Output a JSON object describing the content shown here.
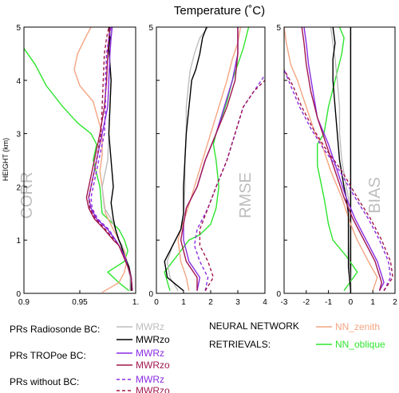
{
  "title": "Temperature (˚C)",
  "ylabel": "HEIGHT (km)",
  "colors": {
    "MWRz_rad": "#bdbdbd",
    "MWRzo_rad": "#000000",
    "MWRz": "#8a2be2",
    "MWRzo": "#a0174f",
    "NN_zenith": "#f4a582",
    "NN_oblique": "#2ee52e"
  },
  "legend": {
    "groups": [
      {
        "label": "PRs Radiosonde BC:",
        "entries": [
          {
            "key": "MWRz_rad",
            "name": "MWRz",
            "dash": false,
            "color": "#bdbdbd"
          },
          {
            "key": "MWRzo_rad",
            "name": "MWRzo",
            "dash": false,
            "color": "#000000"
          }
        ]
      },
      {
        "label": "PRs TROPoe BC:",
        "entries": [
          {
            "key": "MWRz_tro",
            "name": "MWRz",
            "dash": false,
            "color": "#8a2be2"
          },
          {
            "key": "MWRzo_tro",
            "name": "MWRzo",
            "dash": false,
            "color": "#a0174f"
          }
        ]
      },
      {
        "label": "PRs without BC:",
        "entries": [
          {
            "key": "MWRz_nobc",
            "name": "MWRz",
            "dash": true,
            "color": "#8a2be2"
          },
          {
            "key": "MWRzo_nobc",
            "name": "MWRzo",
            "dash": true,
            "color": "#a0174f"
          }
        ]
      }
    ],
    "nn_label1": "NEURAL NETWORK",
    "nn_label2": "RETRIEVALS:",
    "nn_entries": [
      {
        "key": "NN_zenith",
        "name": "NN_zenith",
        "color": "#f4a582"
      },
      {
        "key": "NN_oblique",
        "name": "NN_oblique",
        "color": "#2ee52e"
      }
    ]
  },
  "chart_data": [
    {
      "type": "line",
      "label": "CORR",
      "ylim": [
        0,
        5
      ],
      "xlim": [
        0.9,
        1.0
      ],
      "xticks": [
        "0.9",
        "0.95",
        "1."
      ],
      "yticks": [
        "0",
        "1",
        "2",
        "3",
        "4",
        "5"
      ],
      "grid": false,
      "series": [
        {
          "name": "NN_oblique",
          "color": "#2ee52e",
          "dash": false,
          "x": [
            0.994,
            0.985,
            0.975,
            0.99,
            0.993,
            0.99,
            0.985,
            0.97,
            0.968,
            0.962,
            0.965,
            0.96,
            0.948,
            0.935,
            0.92,
            0.91,
            0.9
          ],
          "y": [
            0.05,
            0.2,
            0.4,
            0.6,
            0.8,
            1.0,
            1.2,
            1.5,
            2.0,
            2.5,
            2.8,
            3.0,
            3.2,
            3.5,
            3.9,
            4.3,
            4.6
          ]
        },
        {
          "name": "NN_zenith",
          "color": "#f4a582",
          "dash": false,
          "x": [
            0.97,
            0.985,
            0.99,
            0.992,
            0.99,
            0.985,
            0.98,
            0.973,
            0.97,
            0.968,
            0.97,
            0.97,
            0.966,
            0.962,
            0.95,
            0.945,
            0.948,
            0.955,
            0.96
          ],
          "y": [
            0.02,
            0.2,
            0.4,
            0.6,
            0.8,
            1.0,
            1.2,
            1.5,
            2.0,
            2.3,
            2.6,
            3.0,
            3.3,
            3.6,
            3.9,
            4.2,
            4.5,
            4.8,
            5.0
          ]
        },
        {
          "name": "MWRz_rad",
          "color": "#bdbdbd",
          "dash": false,
          "x": [
            0.995,
            0.995,
            0.993,
            0.99,
            0.988,
            0.985,
            0.982,
            0.978,
            0.972,
            0.97,
            0.975,
            0.976,
            0.977,
            0.978,
            0.977,
            0.976,
            0.977,
            0.978
          ],
          "y": [
            0.05,
            0.3,
            0.5,
            0.7,
            0.9,
            1.0,
            1.2,
            1.4,
            1.6,
            2.0,
            2.5,
            3.0,
            3.5,
            4.0,
            4.3,
            4.6,
            4.8,
            5.0
          ]
        },
        {
          "name": "MWRzo_rad",
          "color": "#000000",
          "dash": false,
          "x": [
            0.996,
            0.996,
            0.994,
            0.99,
            0.987,
            0.985,
            0.982,
            0.98,
            0.978,
            0.98,
            0.978,
            0.976,
            0.977,
            0.978,
            0.977,
            0.976,
            0.977,
            0.976
          ],
          "y": [
            0.05,
            0.3,
            0.5,
            0.7,
            0.9,
            1.0,
            1.2,
            1.4,
            1.7,
            2.0,
            2.5,
            3.0,
            3.5,
            4.0,
            4.3,
            4.6,
            4.8,
            5.0
          ]
        },
        {
          "name": "MWRz_tro",
          "color": "#8a2be2",
          "dash": false,
          "x": [
            0.997,
            0.996,
            0.993,
            0.99,
            0.985,
            0.982,
            0.975,
            0.965,
            0.96,
            0.958,
            0.96,
            0.965,
            0.97,
            0.975,
            0.976,
            0.977,
            0.978,
            0.979
          ],
          "y": [
            0.05,
            0.3,
            0.5,
            0.7,
            0.9,
            1.0,
            1.2,
            1.4,
            1.6,
            1.8,
            2.0,
            2.5,
            3.0,
            3.5,
            4.0,
            4.5,
            4.8,
            5.0
          ]
        },
        {
          "name": "MWRzo_tro",
          "color": "#a0174f",
          "dash": false,
          "x": [
            0.997,
            0.996,
            0.993,
            0.989,
            0.985,
            0.98,
            0.972,
            0.963,
            0.958,
            0.956,
            0.958,
            0.963,
            0.968,
            0.972,
            0.974,
            0.975,
            0.976,
            0.977
          ],
          "y": [
            0.05,
            0.3,
            0.5,
            0.7,
            0.9,
            1.0,
            1.2,
            1.4,
            1.6,
            1.8,
            2.0,
            2.5,
            3.0,
            3.5,
            4.0,
            4.5,
            4.8,
            5.0
          ]
        },
        {
          "name": "MWRz_nobc",
          "color": "#8a2be2",
          "dash": true,
          "x": [
            0.997,
            0.996,
            0.993,
            0.99,
            0.985,
            0.982,
            0.976,
            0.966,
            0.961,
            0.96,
            0.962,
            0.967,
            0.972,
            0.973,
            0.973,
            0.974,
            0.976,
            0.978
          ],
          "y": [
            0.05,
            0.3,
            0.5,
            0.7,
            0.9,
            1.0,
            1.2,
            1.4,
            1.6,
            1.8,
            2.0,
            2.5,
            3.0,
            3.5,
            4.0,
            4.5,
            4.8,
            5.0
          ]
        },
        {
          "name": "MWRzo_nobc",
          "color": "#a0174f",
          "dash": true,
          "x": [
            0.997,
            0.996,
            0.993,
            0.989,
            0.985,
            0.981,
            0.973,
            0.964,
            0.959,
            0.958,
            0.96,
            0.965,
            0.969,
            0.97,
            0.971,
            0.972,
            0.974,
            0.976
          ],
          "y": [
            0.05,
            0.3,
            0.5,
            0.7,
            0.9,
            1.0,
            1.2,
            1.4,
            1.6,
            1.8,
            2.0,
            2.5,
            3.0,
            3.5,
            4.0,
            4.5,
            4.8,
            5.0
          ]
        }
      ]
    },
    {
      "type": "line",
      "label": "RMSE",
      "ylim": [
        0,
        5
      ],
      "xlim": [
        0,
        4
      ],
      "xticks": [
        "0",
        "1",
        "2",
        "3",
        "4"
      ],
      "yticks": [],
      "grid": false,
      "series": [
        {
          "name": "NN_oblique",
          "color": "#2ee52e",
          "dash": false,
          "x": [
            0.5,
            0.3,
            0.9,
            1.2,
            1.6,
            2.0,
            2.2,
            2.3,
            2.2,
            2.1,
            2.2,
            2.4,
            2.6,
            2.8,
            3.0,
            3.2,
            3.4
          ],
          "y": [
            0.05,
            0.4,
            0.8,
            1.0,
            1.1,
            1.3,
            1.6,
            2.0,
            2.5,
            2.8,
            3.0,
            3.3,
            3.6,
            4.0,
            4.3,
            4.6,
            5.0
          ]
        },
        {
          "name": "NN_zenith",
          "color": "#f4a582",
          "dash": false,
          "x": [
            1.2,
            1.1,
            0.9,
            0.8,
            0.9,
            1.1,
            1.4,
            1.7,
            2.0,
            2.3,
            2.6,
            2.8,
            3.0,
            3.1
          ],
          "y": [
            0.05,
            0.3,
            0.6,
            1.0,
            1.2,
            1.5,
            2.0,
            2.5,
            3.0,
            3.5,
            4.0,
            4.4,
            4.7,
            5.0
          ]
        },
        {
          "name": "MWRz_rad",
          "color": "#bdbdbd",
          "dash": false,
          "x": [
            0.8,
            0.5,
            0.4,
            0.6,
            0.9,
            1.0,
            1.05,
            1.05,
            1.1,
            1.1,
            1.2,
            1.25,
            1.4,
            1.6,
            1.9
          ],
          "y": [
            0.05,
            0.3,
            0.6,
            0.9,
            1.2,
            1.5,
            2.0,
            2.5,
            3.0,
            3.5,
            4.0,
            4.2,
            4.5,
            4.8,
            5.0
          ]
        },
        {
          "name": "MWRzo_rad",
          "color": "#000000",
          "dash": false,
          "x": [
            1.0,
            0.4,
            0.3,
            0.6,
            0.9,
            1.0,
            1.0,
            1.05,
            1.1,
            1.2,
            1.3,
            1.45,
            1.6,
            1.7,
            1.85
          ],
          "y": [
            0.05,
            0.3,
            0.6,
            0.9,
            1.2,
            1.5,
            2.0,
            2.5,
            3.0,
            3.5,
            4.0,
            4.2,
            4.5,
            4.8,
            5.0
          ]
        },
        {
          "name": "MWRz_tro",
          "color": "#8a2be2",
          "dash": false,
          "x": [
            1.5,
            1.6,
            1.2,
            1.0,
            1.0,
            1.1,
            1.5,
            1.8,
            2.2,
            2.5,
            2.8,
            3.0,
            3.0
          ],
          "y": [
            0.05,
            0.3,
            0.6,
            1.0,
            1.3,
            1.6,
            2.0,
            2.5,
            3.0,
            3.5,
            4.0,
            4.5,
            5.0
          ]
        },
        {
          "name": "MWRzo_tro",
          "color": "#a0174f",
          "dash": false,
          "x": [
            1.5,
            1.5,
            1.1,
            0.9,
            1.0,
            1.1,
            1.5,
            1.8,
            2.2,
            2.6,
            2.9,
            3.0,
            3.0
          ],
          "y": [
            0.05,
            0.3,
            0.6,
            1.0,
            1.3,
            1.6,
            2.0,
            2.5,
            3.0,
            3.5,
            4.0,
            4.5,
            5.0
          ]
        },
        {
          "name": "MWRz_nobc",
          "color": "#8a2be2",
          "dash": true,
          "x": [
            1.8,
            1.9,
            1.6,
            1.4,
            1.5,
            1.9,
            2.2,
            2.6,
            2.9,
            3.2,
            3.6,
            4.0
          ],
          "y": [
            0.05,
            0.3,
            0.6,
            0.9,
            1.2,
            1.6,
            2.0,
            2.5,
            3.0,
            3.5,
            3.8,
            4.1
          ]
        },
        {
          "name": "MWRzo_nobc",
          "color": "#a0174f",
          "dash": true,
          "x": [
            1.8,
            2.1,
            1.9,
            1.6,
            1.6,
            1.9,
            2.2,
            2.6,
            2.9,
            3.2,
            3.6,
            4.0
          ],
          "y": [
            0.05,
            0.3,
            0.6,
            0.9,
            1.2,
            1.6,
            2.0,
            2.5,
            3.0,
            3.5,
            3.8,
            4.0
          ]
        }
      ]
    },
    {
      "type": "line",
      "label": "BIAS",
      "ylim": [
        0,
        5
      ],
      "xlim": [
        -3,
        2
      ],
      "xticks": [
        "-3",
        "-2",
        "-1",
        "0",
        "1",
        "2"
      ],
      "yticks": [],
      "grid": false,
      "series": [
        {
          "name": "NN_oblique",
          "color": "#2ee52e",
          "dash": false,
          "x": [
            -0.3,
            0.3,
            -0.2,
            -0.8,
            -1.0,
            -1.2,
            -1.5,
            -1.5,
            -1.2,
            -1.0,
            -0.7,
            -0.4,
            -0.3,
            -0.5
          ],
          "y": [
            0.05,
            0.4,
            0.7,
            1.0,
            1.3,
            1.8,
            2.4,
            2.8,
            3.0,
            3.5,
            4.0,
            4.5,
            4.8,
            5.0
          ]
        },
        {
          "name": "NN_zenith",
          "color": "#f4a582",
          "dash": false,
          "x": [
            1.0,
            1.2,
            0.8,
            0.3,
            0.0,
            -0.4,
            -0.9,
            -1.3,
            -1.6,
            -2.0,
            -2.4,
            -2.7,
            -2.9,
            -3.0
          ],
          "y": [
            0.05,
            0.3,
            0.6,
            1.0,
            1.3,
            1.8,
            2.3,
            2.8,
            3.0,
            3.5,
            4.0,
            4.3,
            4.7,
            5.0
          ]
        },
        {
          "name": "MWRz_rad",
          "color": "#bdbdbd",
          "dash": false,
          "x": [
            0.0,
            -0.05,
            -0.1,
            -0.1,
            -0.1,
            -0.2,
            -0.4,
            -0.5,
            -0.5,
            -0.6,
            -0.7,
            -0.8,
            -0.9
          ],
          "y": [
            0.05,
            0.5,
            1.0,
            1.5,
            1.8,
            2.0,
            2.5,
            3.0,
            3.5,
            4.0,
            4.4,
            4.7,
            5.0
          ]
        },
        {
          "name": "MWRzo_rad",
          "color": "#000000",
          "dash": false,
          "x": [
            0.0,
            -0.1,
            -0.1,
            -0.1,
            -0.2,
            -0.3,
            -0.5,
            -0.6,
            -0.7,
            -0.8,
            -0.8,
            -0.7,
            -0.8
          ],
          "y": [
            0.05,
            0.5,
            1.0,
            1.5,
            1.8,
            2.0,
            2.5,
            3.0,
            3.5,
            4.0,
            4.4,
            4.7,
            5.0
          ]
        },
        {
          "name": "MWRz_tro",
          "color": "#8a2be2",
          "dash": false,
          "x": [
            1.3,
            1.5,
            1.2,
            0.7,
            0.2,
            -0.2,
            -0.6,
            -1.0,
            -1.5,
            -1.7,
            -1.9,
            -2.0,
            -2.1
          ],
          "y": [
            0.05,
            0.2,
            0.6,
            1.0,
            1.4,
            1.8,
            2.3,
            2.8,
            3.3,
            3.8,
            4.3,
            4.7,
            5.0
          ]
        },
        {
          "name": "MWRzo_tro",
          "color": "#a0174f",
          "dash": false,
          "x": [
            1.3,
            1.4,
            1.1,
            0.6,
            0.1,
            -0.3,
            -0.7,
            -1.1,
            -1.5,
            -1.8,
            -2.0,
            -2.1,
            -2.2
          ],
          "y": [
            0.05,
            0.2,
            0.6,
            1.0,
            1.4,
            1.8,
            2.3,
            2.8,
            3.3,
            3.8,
            4.3,
            4.7,
            5.0
          ]
        },
        {
          "name": "MWRz_nobc",
          "color": "#8a2be2",
          "dash": true,
          "x": [
            1.5,
            1.8,
            1.7,
            1.3,
            0.8,
            0.2,
            -0.5,
            -1.2,
            -1.8,
            -2.3,
            -2.7,
            -3.0
          ],
          "y": [
            0.05,
            0.3,
            0.6,
            1.0,
            1.4,
            1.8,
            2.3,
            2.7,
            3.1,
            3.5,
            3.9,
            4.2
          ]
        },
        {
          "name": "MWRzo_nobc",
          "color": "#a0174f",
          "dash": true,
          "x": [
            1.5,
            1.9,
            1.8,
            1.4,
            0.9,
            0.3,
            -0.4,
            -1.1,
            -1.7,
            -2.2,
            -2.6,
            -3.0
          ],
          "y": [
            0.05,
            0.3,
            0.6,
            1.0,
            1.4,
            1.8,
            2.3,
            2.7,
            3.1,
            3.5,
            3.9,
            4.2
          ]
        }
      ]
    }
  ]
}
